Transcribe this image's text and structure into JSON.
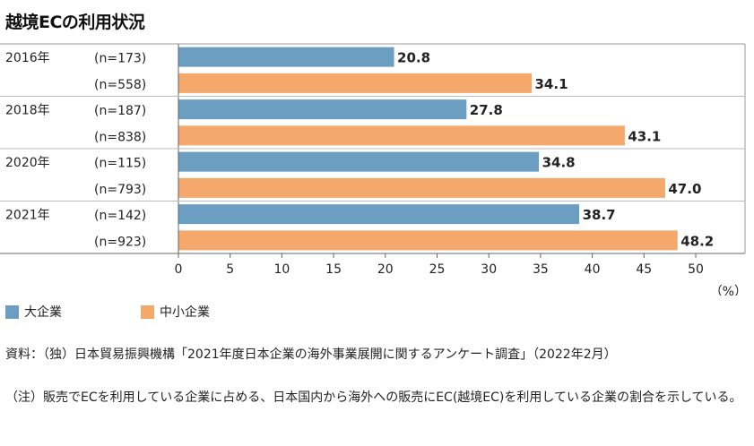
{
  "title": "越境ECの利用状況",
  "chart_data": {
    "type": "bar",
    "orientation": "horizontal",
    "xlim": [
      0,
      55
    ],
    "xticks": [
      "0",
      "5",
      "10",
      "15",
      "20",
      "25",
      "30",
      "35",
      "40",
      "45",
      "50"
    ],
    "xunit": "（%）",
    "groups": [
      {
        "year": "2016年",
        "bars": [
          {
            "series": "大企業",
            "n": "(n=173)",
            "value": 20.8,
            "label": "20.8"
          },
          {
            "series": "中小企業",
            "n": "(n=558)",
            "value": 34.1,
            "label": "34.1"
          }
        ]
      },
      {
        "year": "2018年",
        "bars": [
          {
            "series": "大企業",
            "n": "(n=187)",
            "value": 27.8,
            "label": "27.8"
          },
          {
            "series": "中小企業",
            "n": "(n=838)",
            "value": 43.1,
            "label": "43.1"
          }
        ]
      },
      {
        "year": "2020年",
        "bars": [
          {
            "series": "大企業",
            "n": "(n=115)",
            "value": 34.8,
            "label": "34.8"
          },
          {
            "series": "中小企業",
            "n": "(n=793)",
            "value": 47.0,
            "label": "47.0"
          }
        ]
      },
      {
        "year": "2021年",
        "bars": [
          {
            "series": "大企業",
            "n": "(n=142)",
            "value": 38.7,
            "label": "38.7"
          },
          {
            "series": "中小企業",
            "n": "(n=923)",
            "value": 48.2,
            "label": "48.2"
          }
        ]
      }
    ],
    "series": [
      {
        "name": "大企業",
        "color": "#6b9ec1"
      },
      {
        "name": "中小企業",
        "color": "#f4a86c"
      }
    ]
  },
  "source_note": "資料：（独）日本貿易振興機構「2021年度日本企業の海外事業展開に関するアンケート調査」（2022年2月）",
  "footnote": "（注）販売でECを利用している企業に占める、日本国内から海外への販売にEC(越境EC)を利用している企業の割合を示している。"
}
